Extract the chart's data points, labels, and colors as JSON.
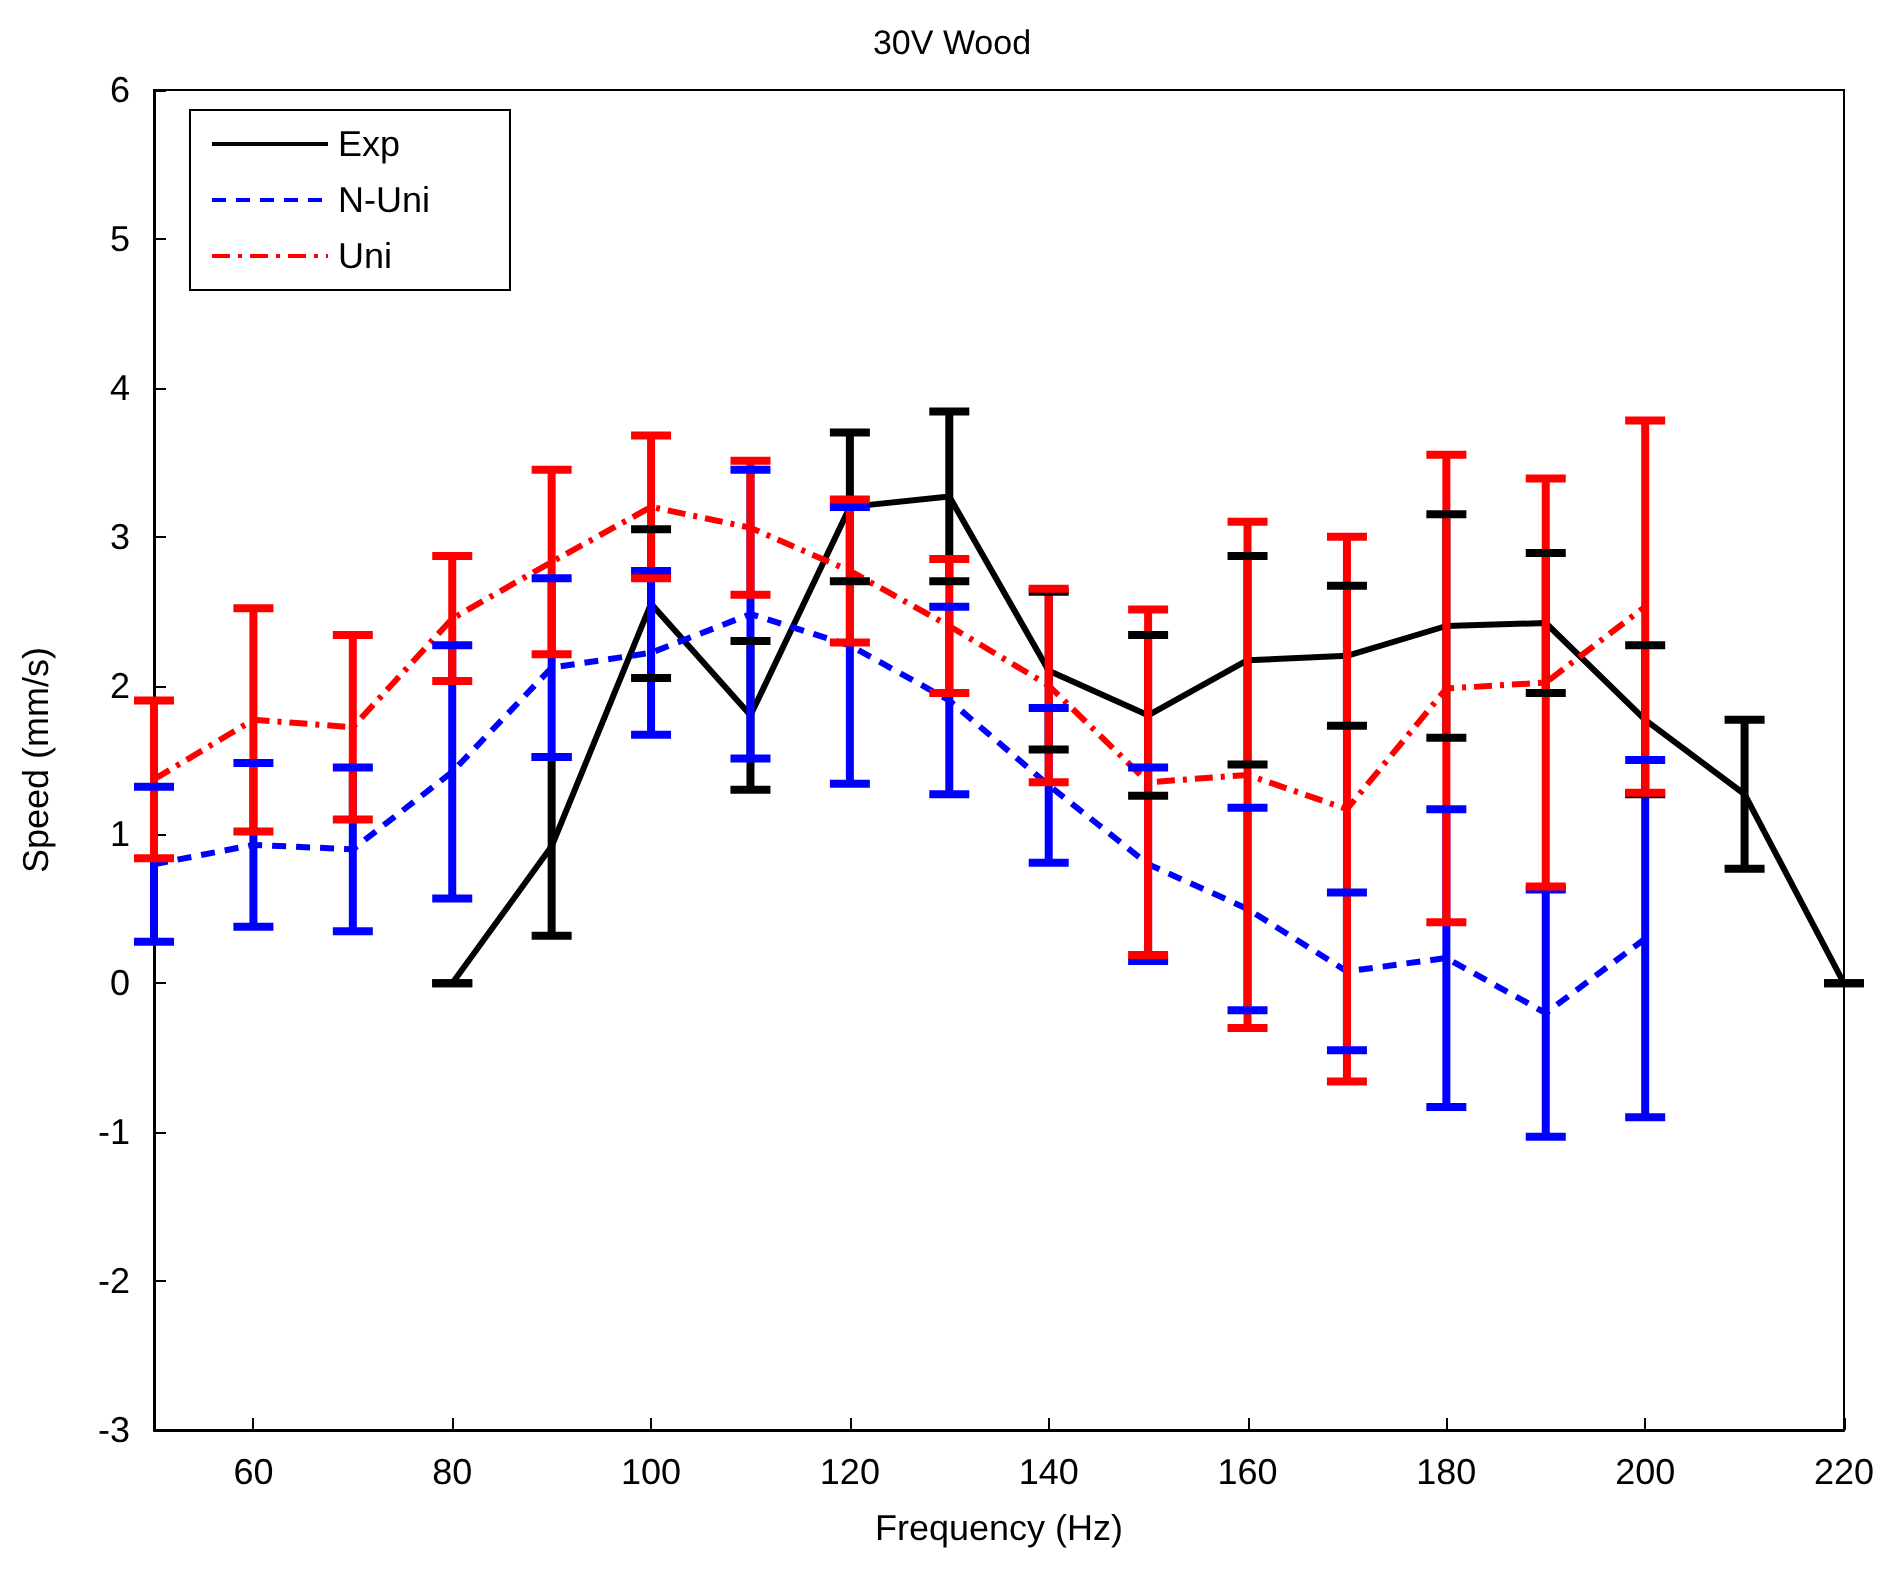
{
  "chart_data": {
    "type": "line",
    "title": "30V Wood",
    "xlabel": "Frequency (Hz)",
    "ylabel": "Speed (mm/s)",
    "xlim": [
      50,
      220
    ],
    "xticks": [
      60,
      80,
      100,
      120,
      140,
      160,
      180,
      200,
      220
    ],
    "ylim": [
      -3,
      6
    ],
    "yticks": [
      -3,
      -2,
      -1,
      0,
      1,
      2,
      3,
      4,
      5,
      6
    ],
    "grid": false,
    "legend": "top left",
    "marker": "none",
    "series": [
      {
        "name": "Exp",
        "color": "#000000",
        "line_style": "solid",
        "x": [
          80,
          90,
          100,
          110,
          120,
          130,
          140,
          150,
          160,
          170,
          180,
          190,
          200,
          210,
          220
        ],
        "values": [
          0,
          0.92,
          2.55,
          1.8,
          3.2,
          3.27,
          2.1,
          1.8,
          2.17,
          2.2,
          2.4,
          2.42,
          1.77,
          1.27,
          0
        ],
        "errors": [
          0,
          0.6,
          0.5,
          0.5,
          0.5,
          0.57,
          0.53,
          0.54,
          0.7,
          0.47,
          0.75,
          0.47,
          0.5,
          0.5,
          0
        ]
      },
      {
        "name": "N-Uni",
        "color": "#0000ff",
        "line_style": "dashed",
        "x": [
          50,
          60,
          70,
          80,
          90,
          100,
          110,
          120,
          130,
          140,
          150,
          160,
          170,
          180,
          190,
          200
        ],
        "values": [
          0.8,
          0.93,
          0.9,
          1.42,
          2.12,
          2.22,
          2.48,
          2.27,
          1.9,
          1.33,
          0.8,
          0.5,
          0.08,
          0.17,
          -0.2,
          0.3
        ],
        "errors": [
          0.52,
          0.55,
          0.55,
          0.85,
          0.6,
          0.55,
          0.97,
          0.93,
          0.63,
          0.52,
          0.65,
          0.68,
          0.53,
          1.0,
          0.83,
          1.2
        ]
      },
      {
        "name": "Uni",
        "color": "#ff0000",
        "line_style": "dashdot",
        "x": [
          50,
          60,
          70,
          80,
          90,
          100,
          110,
          120,
          130,
          140,
          150,
          160,
          170,
          180,
          190,
          200
        ],
        "values": [
          1.37,
          1.77,
          1.72,
          2.45,
          2.83,
          3.2,
          3.06,
          2.77,
          2.4,
          2.0,
          1.35,
          1.4,
          1.17,
          1.98,
          2.02,
          2.53
        ],
        "errors": [
          0.53,
          0.75,
          0.62,
          0.42,
          0.62,
          0.48,
          0.45,
          0.48,
          0.45,
          0.65,
          1.16,
          1.7,
          1.83,
          1.57,
          1.37,
          1.25
        ]
      }
    ]
  }
}
